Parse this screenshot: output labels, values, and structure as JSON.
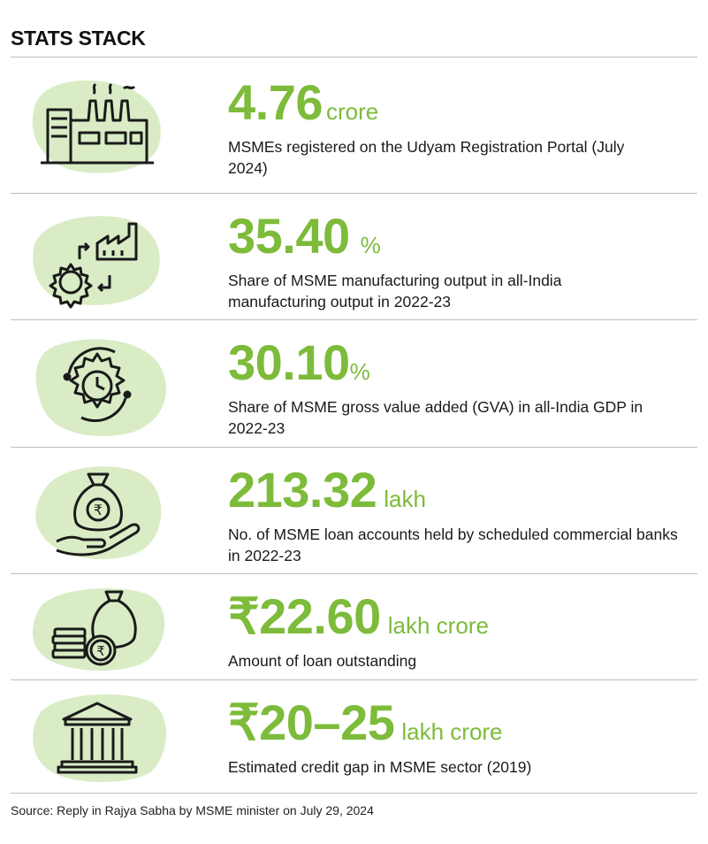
{
  "title": "STATS STACK",
  "colors": {
    "accent": "#7dbb3a",
    "blob": "#d9ecc5",
    "icon_stroke": "#1a1a1a"
  },
  "stats": [
    {
      "icon": "factory-icon",
      "value": "4.76",
      "unit": "crore",
      "description": "MSMEs registered on the Udyam Registration Portal (July 2024)"
    },
    {
      "icon": "manufacturing-gear-icon",
      "value": "35.40",
      "unit": "%",
      "description": "Share of MSME manufacturing output in all-India manufacturing output in 2022-23"
    },
    {
      "icon": "gear-clock-icon",
      "value": "30.10",
      "unit": "%",
      "description": "Share of MSME gross value added (GVA) in all-India GDP in 2022-23"
    },
    {
      "icon": "money-bag-hand-icon",
      "value": "213.32",
      "unit": "lakh",
      "description": "No. of MSME loan accounts held  by scheduled commercial banks in 2022-23"
    },
    {
      "icon": "coins-money-bag-icon",
      "value": "₹22.60",
      "unit": "lakh crore",
      "description": "Amount of loan outstanding"
    },
    {
      "icon": "bank-building-icon",
      "value": "₹20–25",
      "unit": "lakh crore",
      "description": "Estimated credit gap in MSME sector (2019)"
    }
  ],
  "source": "Source: Reply in Rajya Sabha by MSME minister on July 29, 2024"
}
